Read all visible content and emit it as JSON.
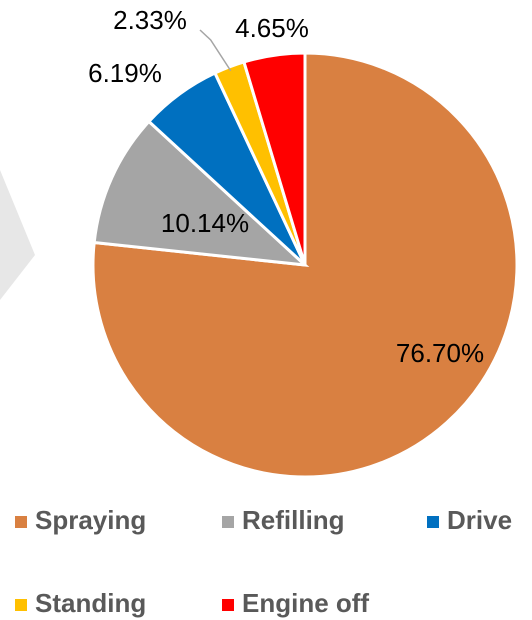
{
  "chart_data": {
    "type": "pie",
    "categories": [
      "Spraying",
      "Refilling",
      "Drive",
      "Standing",
      "Engine off"
    ],
    "values": [
      76.7,
      10.14,
      6.19,
      2.33,
      4.65
    ],
    "value_labels": [
      "76.70%",
      "10.14%",
      "6.19%",
      "2.33%",
      "4.65%"
    ],
    "colors": [
      "#d98041",
      "#a5a5a5",
      "#0070c0",
      "#ffc000",
      "#ff0000"
    ],
    "legend": "bottom"
  }
}
